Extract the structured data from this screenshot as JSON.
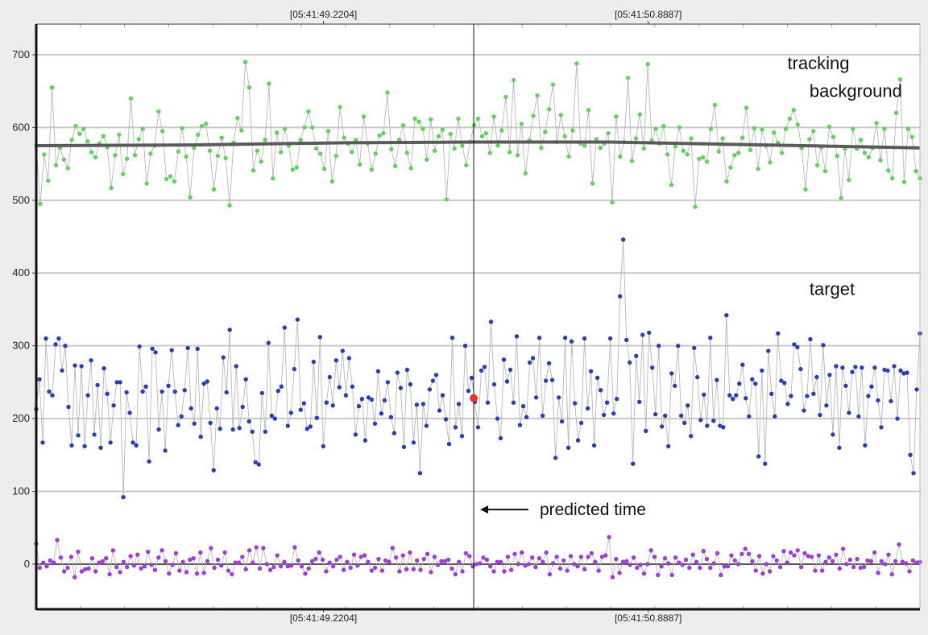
{
  "chart_data": {
    "type": "scatter",
    "title": "",
    "xlabel": "",
    "ylabel": "",
    "y_ticks": [
      0,
      100,
      200,
      300,
      400,
      500,
      600,
      700
    ],
    "ylim": [
      -62,
      742
    ],
    "xlim": [
      0,
      400
    ],
    "grid": true,
    "x_time_labels": [
      {
        "x": 130,
        "label": "[05:41:49.2204]"
      },
      {
        "x": 277,
        "label": "[05:41:50.8887]"
      }
    ],
    "predicted_time_x": 198,
    "predicted_point": {
      "x": 198,
      "y": 228
    },
    "annotation": "predicted time",
    "series": [
      {
        "name": "tracking",
        "color": "#5fd35a",
        "label_position": [
          340,
          680
        ],
        "trend": [
          [
            0,
            575
          ],
          [
            70,
            576
          ],
          [
            140,
            579
          ],
          [
            198,
            580
          ],
          [
            260,
            580
          ],
          [
            330,
            576
          ],
          [
            400,
            572
          ]
        ],
        "values": [
          575,
          495,
          563,
          527,
          655,
          548,
          572,
          556,
          544,
          583,
          602,
          591,
          598,
          581,
          566,
          559,
          578,
          588,
          573,
          517,
          562,
          590,
          536,
          557,
          640,
          562,
          584,
          598,
          523,
          564,
          575,
          622,
          595,
          529,
          533,
          526,
          567,
          599,
          560,
          504,
          572,
          590,
          602,
          605,
          568,
          515,
          561,
          586,
          558,
          493,
          579,
          613,
          596,
          690,
          655,
          541,
          568,
          553,
          583,
          660,
          530,
          593,
          566,
          598,
          575,
          542,
          545,
          583,
          600,
          622,
          600,
          571,
          564,
          543,
          595,
          526,
          561,
          628,
          586,
          578,
          566,
          583,
          549,
          615,
          578,
          542,
          564,
          589,
          592,
          648,
          570,
          547,
          583,
          603,
          565,
          544,
          612,
          608,
          598,
          556,
          611,
          568,
          588,
          597,
          501,
          591,
          571,
          612,
          575,
          548,
          580,
          603,
          612,
          588,
          592,
          565,
          615,
          575,
          596,
          642,
          566,
          665,
          562,
          605,
          537,
          582,
          616,
          644,
          572,
          594,
          625,
          659,
          580,
          617,
          588,
          560,
          596,
          688,
          578,
          575,
          624,
          523,
          584,
          572,
          578,
          592,
          497,
          615,
          560,
          580,
          668,
          554,
          585,
          618,
          571,
          687,
          582,
          598,
          578,
          602,
          563,
          521,
          574,
          600,
          568,
          563,
          585,
          491,
          557,
          559,
          553,
          598,
          631,
          567,
          585,
          526,
          545,
          562,
          565,
          586,
          627,
          569,
          599,
          543,
          597,
          575,
          552,
          593,
          579,
          565,
          598,
          612,
          624,
          604,
          572,
          515,
          584,
          595,
          548,
          573,
          540,
          601,
          587,
          561,
          503,
          571,
          528,
          598,
          571,
          583,
          565,
          559,
          572,
          606,
          555,
          598,
          541,
          530,
          620,
          666,
          525,
          598,
          587,
          540,
          530
        ]
      },
      {
        "name": "target",
        "color": "#2a3fb5",
        "label_position": [
          350,
          370
        ],
        "values": [
          213,
          254,
          167,
          310,
          237,
          232,
          302,
          310,
          266,
          300,
          216,
          163,
          273,
          177,
          272,
          162,
          232,
          280,
          178,
          246,
          160,
          269,
          234,
          167,
          218,
          250,
          250,
          92,
          236,
          208,
          167,
          163,
          299,
          237,
          244,
          141,
          296,
          291,
          185,
          237,
          156,
          245,
          294,
          237,
          191,
          203,
          239,
          297,
          214,
          193,
          296,
          175,
          248,
          251,
          194,
          129,
          214,
          186,
          284,
          236,
          322,
          185,
          272,
          187,
          216,
          254,
          196,
          182,
          140,
          137,
          235,
          182,
          304,
          204,
          200,
          238,
          244,
          325,
          190,
          208,
          268,
          336,
          212,
          221,
          186,
          189,
          278,
          201,
          312,
          162,
          222,
          257,
          218,
          280,
          243,
          293,
          232,
          283,
          244,
          178,
          217,
          227,
          170,
          229,
          226,
          193,
          265,
          207,
          225,
          250,
          202,
          180,
          263,
          242,
          161,
          267,
          247,
          167,
          219,
          125,
          220,
          190,
          240,
          252,
          260,
          211,
          232,
          199,
          165,
          311,
          188,
          220,
          176,
          300,
          238,
          256,
          223,
          188,
          266,
          271,
          222,
          333,
          247,
          200,
          173,
          281,
          251,
          267,
          222,
          313,
          191,
          217,
          202,
          277,
          283,
          229,
          311,
          204,
          252,
          276,
          253,
          146,
          229,
          196,
          311,
          160,
          306,
          221,
          170,
          194,
          310,
          214,
          265,
          163,
          256,
          239,
          205,
          222,
          310,
          207,
          227,
          368,
          446,
          308,
          277,
          138,
          286,
          223,
          315,
          183,
          318,
          270,
          206,
          300,
          189,
          204,
          162,
          262,
          245,
          300,
          204,
          194,
          218,
          176,
          297,
          257,
          198,
          233,
          190,
          311,
          197,
          253,
          190,
          188,
          342,
          232,
          227,
          232,
          248,
          274,
          228,
          203,
          254,
          248,
          148,
          266,
          138,
          293,
          234,
          203,
          317,
          252,
          249,
          220,
          231,
          302,
          298,
          268,
          211,
          231,
          309,
          234,
          257,
          205,
          301,
          218,
          260,
          178,
          272,
          160,
          270,
          245,
          208,
          264,
          271,
          203,
          270,
          163,
          231,
          244,
          270,
          225,
          188,
          267,
          266,
          224,
          272,
          200,
          266,
          262,
          263,
          150,
          125,
          240,
          317
        ]
      },
      {
        "name": "background",
        "color": "#9b3fd6",
        "label_position": [
          350,
          642
        ],
        "values": [
          28,
          -5,
          2,
          -3,
          5,
          2,
          33,
          9,
          -10,
          -5,
          10,
          -18,
          17,
          -10,
          -7,
          -6,
          8,
          -10,
          2,
          4,
          8,
          -14,
          19,
          -4,
          -11,
          3,
          -4,
          11,
          -2,
          13,
          -6,
          -3,
          17,
          -1,
          -8,
          9,
          19,
          4,
          -13,
          -1,
          15,
          -9,
          3,
          -11,
          6,
          8,
          -13,
          16,
          -12,
          4,
          22,
          -5,
          6,
          -2,
          16,
          -9,
          -14,
          2,
          2,
          10,
          -7,
          19,
          2,
          23,
          -6,
          22,
          0,
          -8,
          -4,
          12,
          -3,
          3,
          -3,
          -2,
          23,
          5,
          -3,
          -13,
          -6,
          4,
          7,
          16,
          6,
          -10,
          2,
          -3,
          6,
          10,
          -8,
          3,
          -5,
          13,
          -2,
          10,
          12,
          3,
          -9,
          -5,
          7,
          -9,
          5,
          3,
          22,
          9,
          -10,
          12,
          -7,
          16,
          -7,
          5,
          -8,
          7,
          14,
          -11,
          10,
          -1,
          4,
          4,
          6,
          -6,
          -14,
          3,
          -10,
          15,
          11,
          -3,
          0,
          1,
          9,
          6,
          -3,
          -10,
          3,
          3,
          -10,
          10,
          -8,
          14,
          0,
          16,
          -2,
          0,
          9,
          -4,
          8,
          3,
          16,
          -14,
          1,
          10,
          -6,
          5,
          -9,
          11,
          0,
          -3,
          10,
          -7,
          10,
          15,
          3,
          -9,
          10,
          12,
          37,
          -18,
          7,
          -12,
          3,
          4,
          -1,
          9,
          -5,
          -1,
          -13,
          0,
          19,
          10,
          -15,
          -3,
          8,
          1,
          -15,
          9,
          2,
          -1,
          6,
          -5,
          13,
          3,
          -5,
          18,
          7,
          -5,
          1,
          15,
          -15,
          -3,
          -3,
          12,
          5,
          0,
          14,
          21,
          14,
          4,
          -9,
          11,
          -13,
          0,
          -10,
          11,
          5,
          -4,
          18,
          2,
          16,
          12,
          19,
          -4,
          15,
          11,
          10,
          -9,
          12,
          -9,
          3,
          9,
          4,
          13,
          -6,
          21,
          0,
          6,
          -4,
          7,
          -5,
          -4,
          5,
          4,
          16,
          -12,
          4,
          0,
          13,
          -14,
          4,
          27,
          3,
          1,
          -10,
          5,
          2,
          3
        ]
      }
    ]
  }
}
